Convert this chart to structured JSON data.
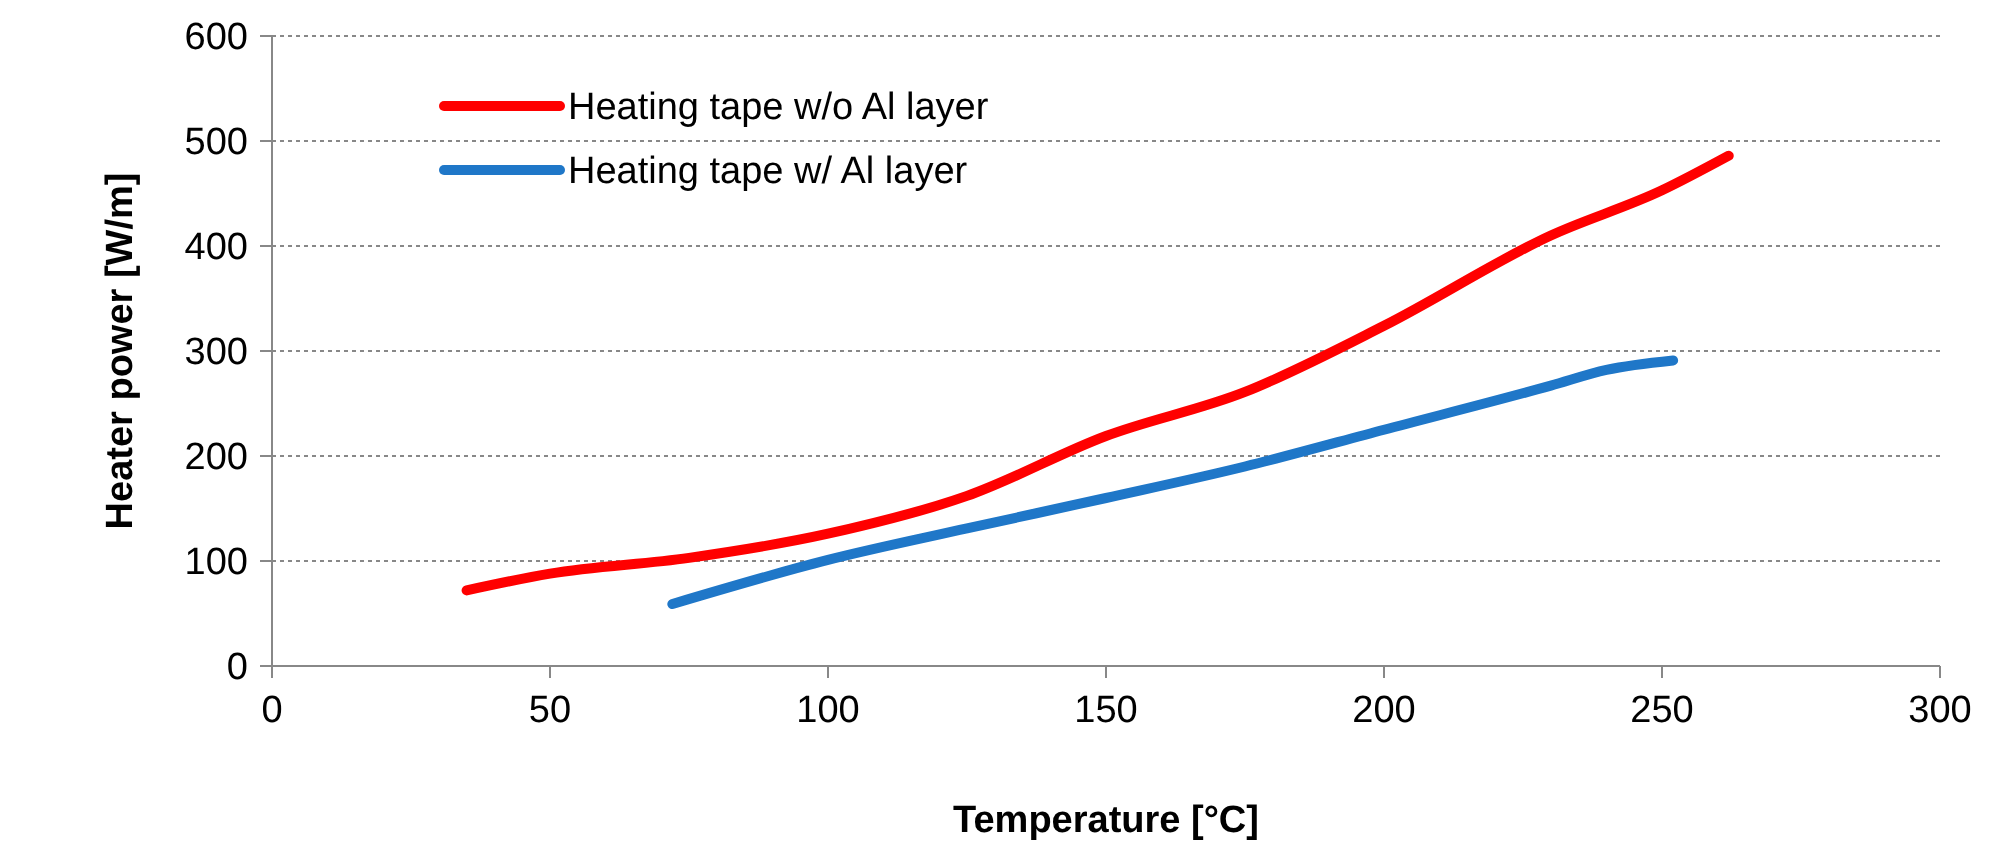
{
  "chart_data": {
    "type": "line",
    "xlabel": "Temperature [°C]",
    "ylabel": "Heater power [W/m]",
    "xlim": [
      0,
      300
    ],
    "xticks": [
      0,
      50,
      100,
      150,
      200,
      250,
      300
    ],
    "ylim": [
      0,
      600
    ],
    "yticks": [
      0,
      100,
      200,
      300,
      400,
      500,
      600
    ],
    "grid": "y",
    "legend": "top left",
    "line_style": "solid",
    "marker": "none",
    "series": [
      {
        "name": "Heating tape w/o Al layer",
        "color": "#ff0000",
        "x": [
          35,
          50,
          75,
          100,
          125,
          150,
          175,
          200,
          230,
          250,
          262
        ],
        "values": [
          72,
          88,
          103,
          126,
          162,
          219,
          261,
          324,
          410,
          453,
          486
        ]
      },
      {
        "name": "Heating tape w/ Al layer",
        "color": "#1f77c8",
        "x": [
          72,
          100,
          125,
          150,
          175,
          200,
          230,
          240,
          252
        ],
        "values": [
          59,
          101,
          131,
          160,
          190,
          225,
          267,
          282,
          291
        ]
      }
    ]
  }
}
